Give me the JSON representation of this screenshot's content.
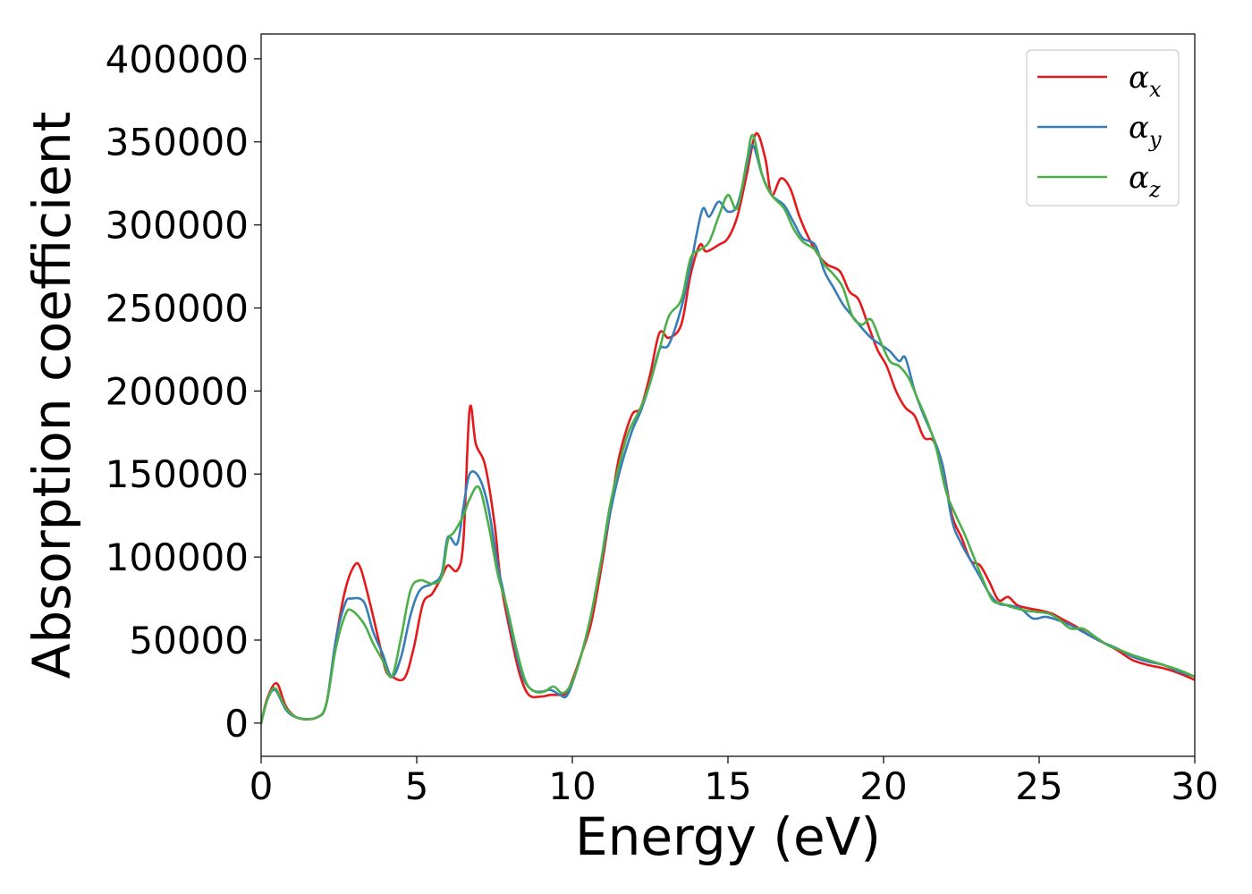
{
  "chart_data": {
    "type": "line",
    "title": "",
    "xlabel": "Energy (eV)",
    "ylabel": "Absorption coefficient",
    "xlim": [
      0,
      30
    ],
    "ylim": [
      -20000,
      415000
    ],
    "xticks": [
      0,
      5,
      10,
      15,
      20,
      25,
      30
    ],
    "yticks": [
      0,
      50000,
      100000,
      150000,
      200000,
      250000,
      300000,
      350000,
      400000
    ],
    "grid": false,
    "legend_position": "top-right",
    "series": [
      {
        "name": "αx",
        "symbol": "α",
        "subscript": "x",
        "color": "#e41a1c",
        "points": [
          [
            0,
            0
          ],
          [
            0.2,
            15000
          ],
          [
            0.5,
            24000
          ],
          [
            0.8,
            10000
          ],
          [
            1.2,
            3000
          ],
          [
            1.8,
            3500
          ],
          [
            2.1,
            12000
          ],
          [
            2.4,
            50000
          ],
          [
            2.7,
            80000
          ],
          [
            3.0,
            95000
          ],
          [
            3.2,
            93000
          ],
          [
            3.5,
            72000
          ],
          [
            3.8,
            48000
          ],
          [
            4.0,
            32000
          ],
          [
            4.2,
            28000
          ],
          [
            4.6,
            27000
          ],
          [
            4.9,
            45000
          ],
          [
            5.2,
            72000
          ],
          [
            5.5,
            78000
          ],
          [
            5.8,
            88000
          ],
          [
            6.0,
            95000
          ],
          [
            6.3,
            92000
          ],
          [
            6.5,
            110000
          ],
          [
            6.7,
            189000
          ],
          [
            6.9,
            168000
          ],
          [
            7.2,
            155000
          ],
          [
            7.5,
            120000
          ],
          [
            7.7,
            85000
          ],
          [
            8.0,
            55000
          ],
          [
            8.3,
            30000
          ],
          [
            8.6,
            17000
          ],
          [
            9.0,
            16000
          ],
          [
            9.3,
            17000
          ],
          [
            9.6,
            17000
          ],
          [
            9.8,
            18000
          ],
          [
            10.0,
            26000
          ],
          [
            10.3,
            42000
          ],
          [
            10.6,
            60000
          ],
          [
            10.9,
            90000
          ],
          [
            11.2,
            125000
          ],
          [
            11.5,
            160000
          ],
          [
            11.9,
            185000
          ],
          [
            12.2,
            190000
          ],
          [
            12.5,
            210000
          ],
          [
            12.8,
            235000
          ],
          [
            13.1,
            232000
          ],
          [
            13.5,
            240000
          ],
          [
            13.8,
            270000
          ],
          [
            14.1,
            288000
          ],
          [
            14.3,
            284000
          ],
          [
            14.7,
            288000
          ],
          [
            15.0,
            292000
          ],
          [
            15.3,
            305000
          ],
          [
            15.6,
            330000
          ],
          [
            15.9,
            355000
          ],
          [
            16.2,
            340000
          ],
          [
            16.4,
            318000
          ],
          [
            16.7,
            328000
          ],
          [
            17.0,
            322000
          ],
          [
            17.3,
            305000
          ],
          [
            17.6,
            292000
          ],
          [
            17.9,
            282000
          ],
          [
            18.2,
            276000
          ],
          [
            18.6,
            272000
          ],
          [
            18.9,
            260000
          ],
          [
            19.2,
            255000
          ],
          [
            19.5,
            240000
          ],
          [
            19.8,
            225000
          ],
          [
            20.1,
            215000
          ],
          [
            20.4,
            200000
          ],
          [
            20.7,
            190000
          ],
          [
            21.0,
            185000
          ],
          [
            21.3,
            172000
          ],
          [
            21.6,
            170000
          ],
          [
            21.9,
            155000
          ],
          [
            22.2,
            125000
          ],
          [
            22.5,
            112000
          ],
          [
            22.8,
            98000
          ],
          [
            23.1,
            95000
          ],
          [
            23.4,
            85000
          ],
          [
            23.7,
            74000
          ],
          [
            24.0,
            76000
          ],
          [
            24.3,
            71000
          ],
          [
            24.7,
            69000
          ],
          [
            25.0,
            68000
          ],
          [
            25.4,
            66000
          ],
          [
            25.8,
            62000
          ],
          [
            26.2,
            58000
          ],
          [
            26.6,
            53000
          ],
          [
            27.0,
            49000
          ],
          [
            27.5,
            44000
          ],
          [
            28.0,
            38000
          ],
          [
            28.5,
            35000
          ],
          [
            29.0,
            33000
          ],
          [
            29.5,
            30000
          ],
          [
            30.0,
            26000
          ]
        ]
      },
      {
        "name": "αy",
        "symbol": "α",
        "subscript": "y",
        "color": "#377eb8",
        "points": [
          [
            0,
            0
          ],
          [
            0.2,
            14000
          ],
          [
            0.45,
            20000
          ],
          [
            0.8,
            8000
          ],
          [
            1.2,
            3000
          ],
          [
            1.8,
            3500
          ],
          [
            2.1,
            12000
          ],
          [
            2.4,
            50000
          ],
          [
            2.7,
            72000
          ],
          [
            2.9,
            75000
          ],
          [
            3.3,
            73000
          ],
          [
            3.6,
            55000
          ],
          [
            3.9,
            42000
          ],
          [
            4.2,
            28000
          ],
          [
            4.5,
            40000
          ],
          [
            4.8,
            65000
          ],
          [
            5.1,
            80000
          ],
          [
            5.5,
            84000
          ],
          [
            5.8,
            90000
          ],
          [
            6.0,
            112000
          ],
          [
            6.3,
            108000
          ],
          [
            6.5,
            130000
          ],
          [
            6.7,
            150000
          ],
          [
            7.0,
            148000
          ],
          [
            7.3,
            130000
          ],
          [
            7.6,
            95000
          ],
          [
            7.8,
            78000
          ],
          [
            8.1,
            50000
          ],
          [
            8.4,
            28000
          ],
          [
            8.7,
            20000
          ],
          [
            9.0,
            19000
          ],
          [
            9.3,
            20000
          ],
          [
            9.6,
            17000
          ],
          [
            9.8,
            16000
          ],
          [
            10.0,
            24000
          ],
          [
            10.3,
            42000
          ],
          [
            10.6,
            65000
          ],
          [
            10.9,
            95000
          ],
          [
            11.2,
            125000
          ],
          [
            11.5,
            150000
          ],
          [
            11.9,
            175000
          ],
          [
            12.2,
            188000
          ],
          [
            12.5,
            205000
          ],
          [
            12.8,
            225000
          ],
          [
            13.1,
            228000
          ],
          [
            13.5,
            250000
          ],
          [
            13.8,
            275000
          ],
          [
            14.0,
            295000
          ],
          [
            14.2,
            310000
          ],
          [
            14.4,
            305000
          ],
          [
            14.7,
            314000
          ],
          [
            15.0,
            308000
          ],
          [
            15.3,
            312000
          ],
          [
            15.6,
            335000
          ],
          [
            15.8,
            348000
          ],
          [
            16.1,
            330000
          ],
          [
            16.4,
            318000
          ],
          [
            16.8,
            312000
          ],
          [
            17.1,
            302000
          ],
          [
            17.4,
            292000
          ],
          [
            17.8,
            288000
          ],
          [
            18.1,
            272000
          ],
          [
            18.4,
            262000
          ],
          [
            18.7,
            252000
          ],
          [
            19.0,
            245000
          ],
          [
            19.3,
            238000
          ],
          [
            19.6,
            232000
          ],
          [
            19.9,
            228000
          ],
          [
            20.2,
            224000
          ],
          [
            20.5,
            218000
          ],
          [
            20.7,
            220000
          ],
          [
            21.0,
            200000
          ],
          [
            21.3,
            185000
          ],
          [
            21.6,
            172000
          ],
          [
            21.9,
            155000
          ],
          [
            22.2,
            122000
          ],
          [
            22.5,
            108000
          ],
          [
            22.8,
            98000
          ],
          [
            23.1,
            88000
          ],
          [
            23.4,
            78000
          ],
          [
            23.7,
            72000
          ],
          [
            24.0,
            71000
          ],
          [
            24.4,
            69000
          ],
          [
            24.8,
            63000
          ],
          [
            25.2,
            64000
          ],
          [
            25.6,
            62000
          ],
          [
            26.0,
            59000
          ],
          [
            26.5,
            54000
          ],
          [
            27.0,
            49000
          ],
          [
            27.5,
            45000
          ],
          [
            28.0,
            40000
          ],
          [
            28.5,
            37000
          ],
          [
            29.0,
            35000
          ],
          [
            29.5,
            31000
          ],
          [
            30.0,
            28000
          ]
        ]
      },
      {
        "name": "αz",
        "symbol": "α",
        "subscript": "z",
        "color": "#4daf4a",
        "points": [
          [
            0,
            0
          ],
          [
            0.2,
            14000
          ],
          [
            0.45,
            21000
          ],
          [
            0.8,
            9000
          ],
          [
            1.2,
            3000
          ],
          [
            1.8,
            3500
          ],
          [
            2.1,
            12000
          ],
          [
            2.4,
            45000
          ],
          [
            2.7,
            65000
          ],
          [
            2.9,
            68000
          ],
          [
            3.3,
            60000
          ],
          [
            3.6,
            48000
          ],
          [
            3.9,
            38000
          ],
          [
            4.2,
            28000
          ],
          [
            4.5,
            52000
          ],
          [
            4.8,
            80000
          ],
          [
            5.1,
            86000
          ],
          [
            5.5,
            84000
          ],
          [
            5.8,
            88000
          ],
          [
            6.0,
            110000
          ],
          [
            6.2,
            115000
          ],
          [
            6.5,
            125000
          ],
          [
            6.7,
            135000
          ],
          [
            7.0,
            142000
          ],
          [
            7.3,
            120000
          ],
          [
            7.6,
            90000
          ],
          [
            7.9,
            70000
          ],
          [
            8.2,
            45000
          ],
          [
            8.5,
            25000
          ],
          [
            8.8,
            19000
          ],
          [
            9.1,
            19000
          ],
          [
            9.4,
            22000
          ],
          [
            9.7,
            18000
          ],
          [
            10.0,
            25000
          ],
          [
            10.3,
            42000
          ],
          [
            10.6,
            65000
          ],
          [
            10.9,
            95000
          ],
          [
            11.2,
            130000
          ],
          [
            11.5,
            155000
          ],
          [
            11.8,
            175000
          ],
          [
            12.2,
            190000
          ],
          [
            12.5,
            205000
          ],
          [
            12.8,
            225000
          ],
          [
            13.1,
            245000
          ],
          [
            13.5,
            255000
          ],
          [
            13.8,
            280000
          ],
          [
            14.1,
            285000
          ],
          [
            14.4,
            290000
          ],
          [
            14.7,
            305000
          ],
          [
            15.0,
            318000
          ],
          [
            15.3,
            310000
          ],
          [
            15.6,
            338000
          ],
          [
            15.8,
            354000
          ],
          [
            16.1,
            330000
          ],
          [
            16.4,
            318000
          ],
          [
            16.8,
            310000
          ],
          [
            17.1,
            298000
          ],
          [
            17.4,
            290000
          ],
          [
            17.8,
            285000
          ],
          [
            18.1,
            276000
          ],
          [
            18.4,
            270000
          ],
          [
            18.7,
            262000
          ],
          [
            19.0,
            245000
          ],
          [
            19.3,
            240000
          ],
          [
            19.6,
            243000
          ],
          [
            19.9,
            230000
          ],
          [
            20.2,
            218000
          ],
          [
            20.5,
            215000
          ],
          [
            20.8,
            208000
          ],
          [
            21.1,
            195000
          ],
          [
            21.4,
            182000
          ],
          [
            21.7,
            165000
          ],
          [
            22.0,
            140000
          ],
          [
            22.3,
            126000
          ],
          [
            22.6,
            114000
          ],
          [
            22.9,
            100000
          ],
          [
            23.2,
            86000
          ],
          [
            23.5,
            74000
          ],
          [
            23.8,
            72000
          ],
          [
            24.1,
            70000
          ],
          [
            24.5,
            68000
          ],
          [
            24.9,
            67000
          ],
          [
            25.3,
            66000
          ],
          [
            25.6,
            63000
          ],
          [
            26.0,
            57000
          ],
          [
            26.4,
            57000
          ],
          [
            26.8,
            52000
          ],
          [
            27.2,
            47000
          ],
          [
            27.6,
            44000
          ],
          [
            28.0,
            41000
          ],
          [
            28.5,
            38000
          ],
          [
            29.0,
            35000
          ],
          [
            29.5,
            32000
          ],
          [
            30.0,
            28000
          ]
        ]
      }
    ]
  }
}
